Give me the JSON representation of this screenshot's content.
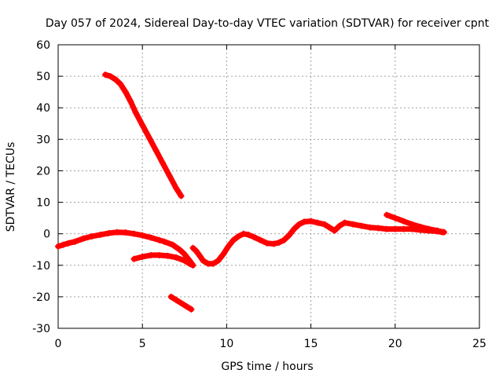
{
  "chart_data": {
    "type": "scatter",
    "title": "Day 057 of 2024, Sidereal Day-to-day VTEC variation (SDTVAR) for receiver cpnt",
    "xlabel": "GPS time / hours",
    "ylabel": "SDTVAR / TECUs",
    "xlim": [
      0,
      25
    ],
    "ylim": [
      -30,
      60
    ],
    "xticks": [
      0,
      5,
      10,
      15,
      20,
      25
    ],
    "yticks": [
      -30,
      -20,
      -10,
      0,
      10,
      20,
      30,
      40,
      50,
      60
    ],
    "grid": true,
    "marker": "+",
    "series": [
      {
        "name": "SDTVAR",
        "color": "#ff0000",
        "segments": [
          [
            [
              0.0,
              -4.0
            ],
            [
              0.3,
              -3.5
            ],
            [
              0.6,
              -3.0
            ],
            [
              1.0,
              -2.5
            ],
            [
              1.5,
              -1.5
            ],
            [
              2.0,
              -0.8
            ],
            [
              2.5,
              -0.3
            ],
            [
              3.0,
              0.2
            ],
            [
              3.5,
              0.5
            ],
            [
              4.0,
              0.4
            ],
            [
              4.5,
              0.0
            ],
            [
              5.0,
              -0.5
            ],
            [
              5.5,
              -1.2
            ],
            [
              6.0,
              -2.0
            ],
            [
              6.3,
              -2.5
            ],
            [
              6.8,
              -3.5
            ],
            [
              7.2,
              -5.0
            ],
            [
              7.5,
              -6.5
            ],
            [
              7.8,
              -8.5
            ],
            [
              8.0,
              -10.0
            ]
          ],
          [
            [
              2.8,
              50.5
            ],
            [
              3.1,
              50.0
            ],
            [
              3.4,
              49.0
            ],
            [
              3.7,
              47.5
            ],
            [
              4.0,
              45.0
            ],
            [
              4.3,
              42.0
            ],
            [
              4.6,
              38.5
            ],
            [
              5.0,
              34.5
            ],
            [
              5.4,
              30.5
            ],
            [
              5.8,
              26.5
            ],
            [
              6.2,
              22.5
            ],
            [
              6.6,
              18.5
            ],
            [
              7.0,
              14.5
            ],
            [
              7.3,
              12.0
            ]
          ],
          [
            [
              4.5,
              -8.0
            ],
            [
              5.0,
              -7.3
            ],
            [
              5.5,
              -6.8
            ],
            [
              6.0,
              -6.8
            ],
            [
              6.5,
              -7.0
            ],
            [
              7.0,
              -7.5
            ],
            [
              7.5,
              -8.5
            ],
            [
              7.8,
              -9.5
            ],
            [
              8.0,
              -10.0
            ]
          ],
          [
            [
              6.7,
              -20.0
            ],
            [
              7.0,
              -21.0
            ],
            [
              7.3,
              -22.0
            ],
            [
              7.6,
              -23.0
            ],
            [
              7.9,
              -24.0
            ]
          ],
          [
            [
              8.0,
              -4.5
            ],
            [
              8.2,
              -5.5
            ],
            [
              8.4,
              -7.0
            ],
            [
              8.6,
              -8.5
            ],
            [
              8.9,
              -9.5
            ],
            [
              9.2,
              -9.5
            ],
            [
              9.5,
              -8.5
            ],
            [
              9.8,
              -6.5
            ],
            [
              10.1,
              -4.0
            ],
            [
              10.4,
              -2.0
            ],
            [
              10.7,
              -0.8
            ],
            [
              11.0,
              0.0
            ],
            [
              11.3,
              -0.3
            ],
            [
              11.6,
              -1.0
            ],
            [
              12.0,
              -2.0
            ],
            [
              12.4,
              -3.0
            ],
            [
              12.8,
              -3.2
            ],
            [
              13.1,
              -2.8
            ],
            [
              13.4,
              -2.0
            ],
            [
              13.7,
              -0.5
            ],
            [
              14.0,
              1.5
            ],
            [
              14.3,
              3.0
            ],
            [
              14.6,
              3.8
            ],
            [
              15.0,
              4.0
            ],
            [
              15.4,
              3.5
            ],
            [
              15.8,
              3.0
            ],
            [
              16.1,
              2.0
            ],
            [
              16.4,
              1.0
            ],
            [
              16.7,
              2.5
            ],
            [
              17.0,
              3.5
            ],
            [
              17.5,
              3.0
            ],
            [
              18.0,
              2.5
            ],
            [
              18.5,
              2.0
            ],
            [
              19.0,
              1.8
            ],
            [
              19.5,
              1.5
            ],
            [
              20.0,
              1.5
            ],
            [
              20.5,
              1.5
            ],
            [
              21.0,
              1.5
            ],
            [
              21.5,
              1.2
            ],
            [
              22.0,
              1.0
            ],
            [
              22.5,
              0.8
            ],
            [
              22.8,
              0.5
            ]
          ],
          [
            [
              19.5,
              6.0
            ],
            [
              20.0,
              5.0
            ],
            [
              20.5,
              4.0
            ],
            [
              21.0,
              3.0
            ],
            [
              21.5,
              2.2
            ],
            [
              22.0,
              1.5
            ],
            [
              22.5,
              1.0
            ],
            [
              22.9,
              0.5
            ]
          ]
        ]
      }
    ]
  }
}
